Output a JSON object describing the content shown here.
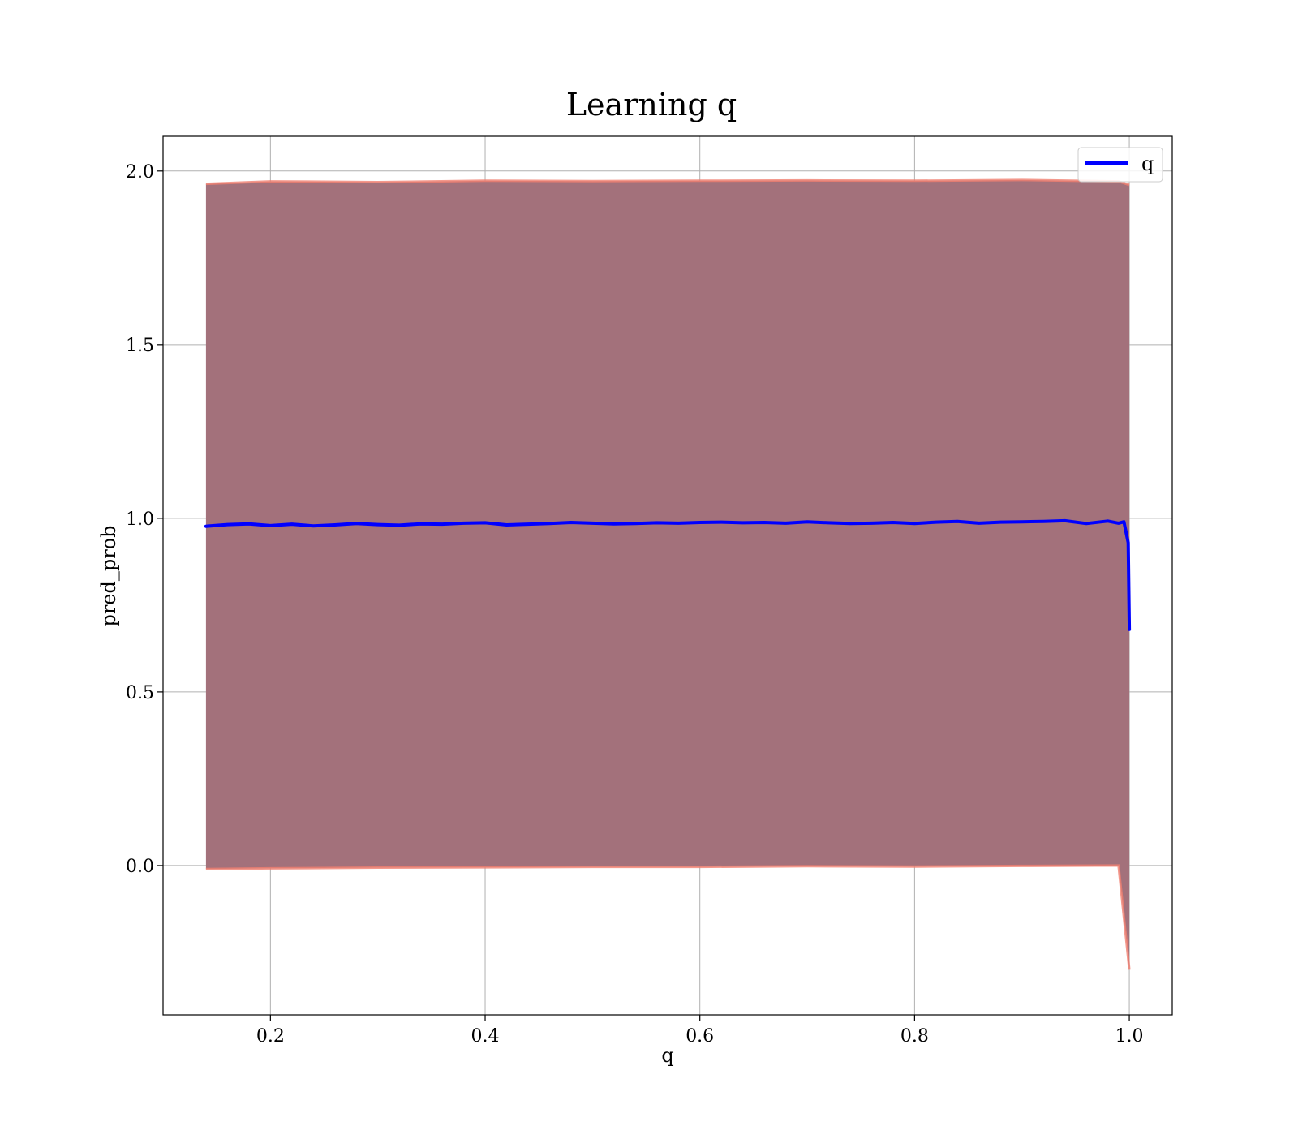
{
  "chart_data": {
    "type": "line",
    "title": "Learning q",
    "xlabel": "q",
    "ylabel": "pred_prob",
    "xlim": [
      0.1,
      1.04
    ],
    "ylim": [
      -0.43,
      2.1
    ],
    "xticks": [
      0.2,
      0.4,
      0.6,
      0.8,
      1.0
    ],
    "xtick_labels": [
      "0.2",
      "0.4",
      "0.6",
      "0.8",
      "1.0"
    ],
    "yticks": [
      0.0,
      0.5,
      1.0,
      1.5,
      2.0
    ],
    "ytick_labels": [
      "0.0",
      "0.5",
      "1.0",
      "1.5",
      "2.0"
    ],
    "grid": true,
    "legend": {
      "position": "top-right",
      "entries": [
        "q"
      ]
    },
    "series": [
      {
        "name": "q",
        "color": "#0000ff",
        "x": [
          0.14,
          0.16,
          0.18,
          0.2,
          0.22,
          0.24,
          0.26,
          0.28,
          0.3,
          0.32,
          0.34,
          0.36,
          0.38,
          0.4,
          0.42,
          0.44,
          0.46,
          0.48,
          0.5,
          0.52,
          0.54,
          0.56,
          0.58,
          0.6,
          0.62,
          0.64,
          0.66,
          0.68,
          0.7,
          0.72,
          0.74,
          0.76,
          0.78,
          0.8,
          0.82,
          0.84,
          0.86,
          0.88,
          0.9,
          0.92,
          0.94,
          0.96,
          0.98,
          0.99,
          0.995,
          0.999,
          1.0
        ],
        "y": [
          0.977,
          0.982,
          0.984,
          0.979,
          0.983,
          0.978,
          0.981,
          0.985,
          0.982,
          0.98,
          0.984,
          0.983,
          0.986,
          0.987,
          0.981,
          0.983,
          0.985,
          0.988,
          0.986,
          0.984,
          0.985,
          0.987,
          0.986,
          0.988,
          0.989,
          0.987,
          0.988,
          0.986,
          0.99,
          0.987,
          0.985,
          0.986,
          0.988,
          0.985,
          0.989,
          0.991,
          0.986,
          0.989,
          0.99,
          0.991,
          0.993,
          0.985,
          0.992,
          0.986,
          0.99,
          0.93,
          0.68
        ]
      }
    ],
    "band": {
      "fill_color": "#a3717b",
      "edge_color": "#f08070",
      "x": [
        0.14,
        0.2,
        0.3,
        0.4,
        0.5,
        0.6,
        0.7,
        0.8,
        0.9,
        0.99,
        1.0
      ],
      "upper": [
        1.963,
        1.97,
        1.968,
        1.972,
        1.971,
        1.972,
        1.973,
        1.972,
        1.974,
        1.97,
        1.96
      ],
      "lower": [
        -0.01,
        -0.008,
        -0.006,
        -0.005,
        -0.004,
        -0.004,
        -0.002,
        -0.003,
        -0.001,
        0.0,
        -0.3
      ]
    }
  }
}
